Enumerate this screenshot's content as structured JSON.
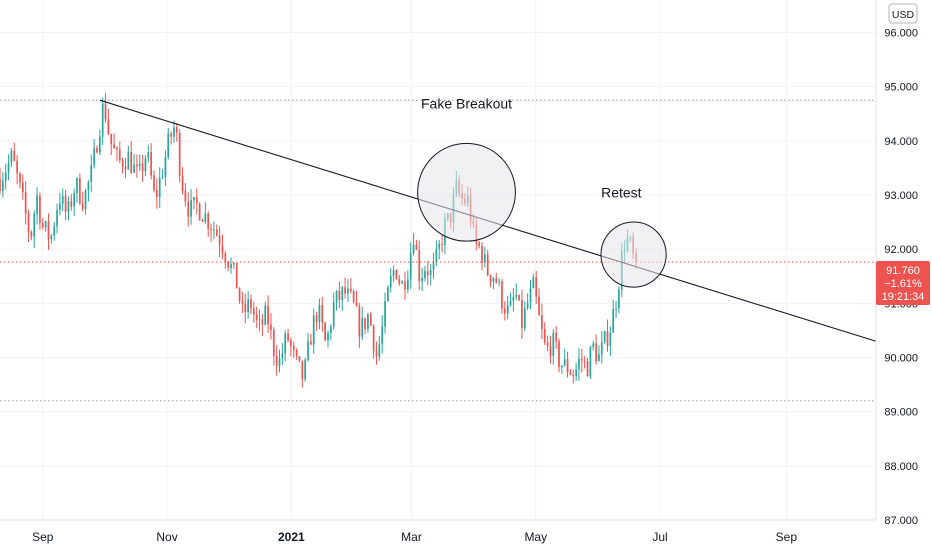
{
  "currency_badge": "USD",
  "colors": {
    "up": "#26a69a",
    "down": "#ef5350",
    "grid": "#f0f3fa",
    "axis_text": "#131722",
    "dotted_level": "#9598a1",
    "current_price_line": "#ef5350",
    "trendline": "#131722",
    "circle_fill": "#e6e6e9",
    "circle_stroke": "#131722"
  },
  "chart_data": {
    "type": "candlestick",
    "ylim": [
      87.0,
      96.6
    ],
    "y_ticks": [
      "87.000",
      "88.000",
      "89.000",
      "90.000",
      "91.000",
      "92.000",
      "93.000",
      "94.000",
      "95.000",
      "96.000"
    ],
    "x_ticks": [
      {
        "label": "Sep",
        "day": 0
      },
      {
        "label": "Nov",
        "day": 61
      },
      {
        "label": "2021",
        "day": 122
      },
      {
        "label": "Mar",
        "day": 181
      },
      {
        "label": "May",
        "day": 242
      },
      {
        "label": "Jul",
        "day": 303
      },
      {
        "label": "Sep",
        "day": 365
      }
    ],
    "xlim": [
      -21,
      409
    ],
    "series_start_day": -21,
    "series_end_day": 303,
    "candle_every_days": 1.4,
    "close_path": [
      [
        -21,
        93.3
      ],
      [
        -15,
        93.7
      ],
      [
        -10,
        92.9
      ],
      [
        -6,
        92.2
      ],
      [
        -3,
        93.0
      ],
      [
        0,
        92.4
      ],
      [
        4,
        92.2
      ],
      [
        8,
        93.0
      ],
      [
        12,
        92.6
      ],
      [
        16,
        93.2
      ],
      [
        20,
        92.9
      ],
      [
        24,
        93.4
      ],
      [
        27,
        94.1
      ],
      [
        30,
        94.7
      ],
      [
        33,
        94.0
      ],
      [
        37,
        93.6
      ],
      [
        42,
        93.7
      ],
      [
        47,
        93.3
      ],
      [
        51,
        93.8
      ],
      [
        55,
        92.9
      ],
      [
        59,
        93.5
      ],
      [
        62,
        94.0
      ],
      [
        65,
        94.3
      ],
      [
        68,
        93.3
      ],
      [
        72,
        92.7
      ],
      [
        76,
        92.8
      ],
      [
        80,
        92.6
      ],
      [
        84,
        92.4
      ],
      [
        88,
        92.1
      ],
      [
        91,
        91.8
      ],
      [
        95,
        91.4
      ],
      [
        98,
        90.8
      ],
      [
        102,
        91.0
      ],
      [
        106,
        90.5
      ],
      [
        110,
        90.8
      ],
      [
        113,
        90.2
      ],
      [
        116,
        89.9
      ],
      [
        120,
        90.4
      ],
      [
        124,
        89.9
      ],
      [
        128,
        89.6
      ],
      [
        132,
        90.5
      ],
      [
        135,
        90.9
      ],
      [
        139,
        90.2
      ],
      [
        143,
        91.0
      ],
      [
        148,
        91.2
      ],
      [
        152,
        91.0
      ],
      [
        156,
        90.5
      ],
      [
        160,
        90.8
      ],
      [
        164,
        90.0
      ],
      [
        167,
        90.6
      ],
      [
        170,
        91.3
      ],
      [
        173,
        91.7
      ],
      [
        176,
        91.3
      ],
      [
        179,
        91.6
      ],
      [
        182,
        92.3
      ],
      [
        185,
        91.5
      ],
      [
        188,
        91.7
      ],
      [
        191,
        91.5
      ],
      [
        194,
        91.9
      ],
      [
        197,
        92.4
      ],
      [
        200,
        92.6
      ],
      [
        203,
        93.1
      ],
      [
        206,
        92.9
      ],
      [
        209,
        92.9
      ],
      [
        212,
        92.1
      ],
      [
        215,
        92.0
      ],
      [
        218,
        91.6
      ],
      [
        222,
        91.5
      ],
      [
        226,
        91.0
      ],
      [
        229,
        90.8
      ],
      [
        232,
        91.2
      ],
      [
        235,
        90.6
      ],
      [
        238,
        91.0
      ],
      [
        241,
        91.3
      ],
      [
        244,
        90.6
      ],
      [
        247,
        90.1
      ],
      [
        250,
        90.3
      ],
      [
        254,
        89.9
      ],
      [
        258,
        89.8
      ],
      [
        261,
        89.7
      ],
      [
        264,
        90.0
      ],
      [
        267,
        89.8
      ],
      [
        270,
        90.2
      ],
      [
        273,
        90.0
      ],
      [
        276,
        90.3
      ],
      [
        279,
        90.6
      ],
      [
        282,
        91.2
      ],
      [
        284,
        91.8
      ],
      [
        286,
        92.2
      ],
      [
        288,
        92.1
      ],
      [
        290,
        91.8
      ],
      [
        292,
        91.76
      ]
    ],
    "trendline": {
      "from": [
        28,
        94.75
      ],
      "to": [
        409,
        90.3
      ]
    },
    "horizontal_levels": [
      94.75,
      89.2
    ],
    "current_price": {
      "value": 91.76,
      "price_label": "91.760",
      "change_label": "−1.61%",
      "timer_label": "19:21:34"
    },
    "annotations": [
      {
        "text": "Fake Breakout",
        "circle_center": [
          208,
          93.05
        ],
        "radius_days": 24,
        "label_anchor": [
          208,
          94.6
        ]
      },
      {
        "text": "Retest",
        "circle_center": [
          290,
          91.9
        ],
        "radius_days": 16,
        "label_anchor": [
          284,
          92.95
        ]
      }
    ]
  }
}
